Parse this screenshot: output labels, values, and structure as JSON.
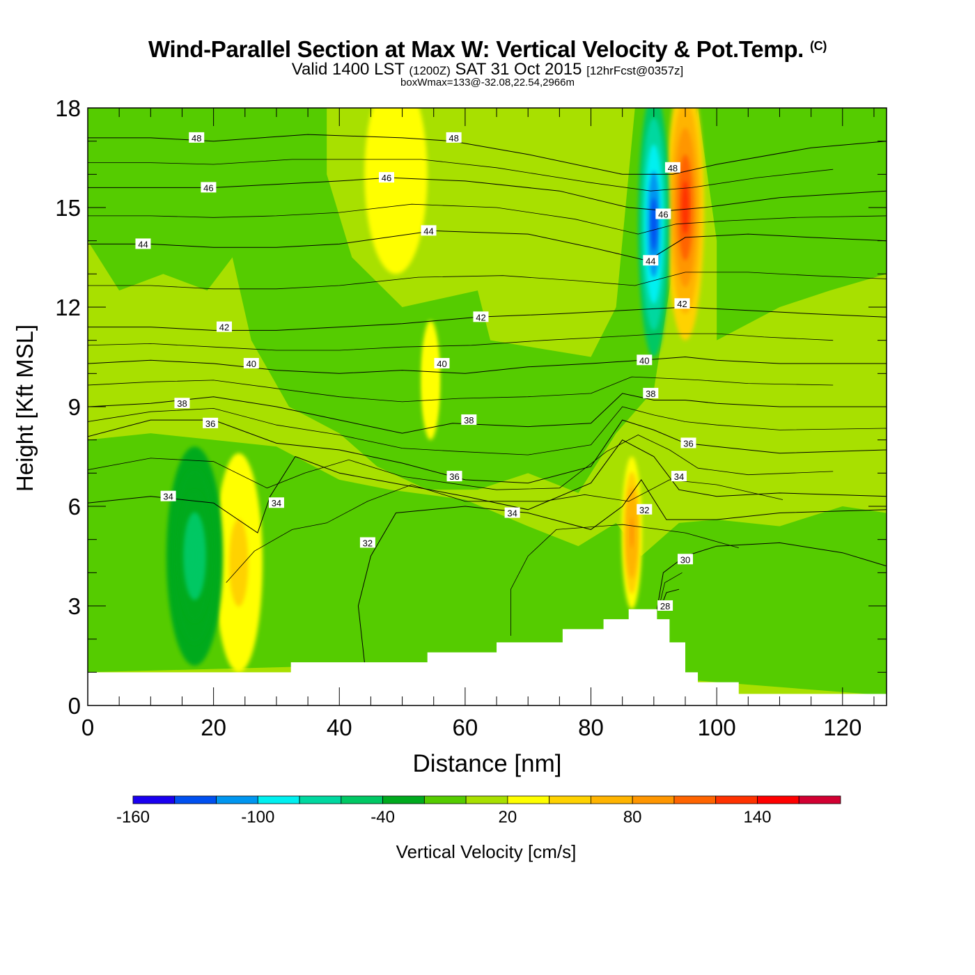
{
  "header": {
    "title": "Wind-Parallel Section at Max W: Vertical Velocity & Pot.Temp.",
    "copyright": "(C)",
    "valid_prefix": "Valid 1400 LST",
    "valid_utc": "(1200Z)",
    "valid_date": "SAT 31 Oct 2015",
    "forecast": "[12hrFcst@0357z]",
    "box_note": "boxWmax=133@-32.08,22.54,2966m"
  },
  "chart_data": {
    "type": "heatmap",
    "title": "Wind-Parallel Section at Max W: Vertical Velocity & Pot.Temp.",
    "xlabel": "Distance [nm]",
    "ylabel": "Height [Kft MSL]",
    "xlim": [
      0,
      127
    ],
    "ylim": [
      0,
      18
    ],
    "x_ticks": [
      0,
      20,
      40,
      60,
      80,
      100,
      120
    ],
    "y_ticks": [
      0,
      3,
      6,
      9,
      12,
      15,
      18
    ],
    "x_tick_labels": [
      "0",
      "20",
      "40",
      "60",
      "80",
      "100",
      "120"
    ],
    "y_tick_labels": [
      "0",
      "3",
      "6",
      "9",
      "12",
      "15",
      "18"
    ],
    "colorbar": {
      "label": "Vertical Velocity [cm/s]",
      "bounds": [
        -160,
        -140,
        -120,
        -100,
        -80,
        -60,
        -40,
        -20,
        0,
        20,
        40,
        60,
        80,
        100,
        120,
        140,
        160,
        180
      ],
      "tick_values": [
        -160,
        -100,
        -40,
        20,
        80,
        140
      ],
      "tick_labels": [
        "-160",
        "-100",
        "-40",
        "20",
        "80",
        "140"
      ],
      "colors": [
        "#1a00f0",
        "#0050f0",
        "#0096f0",
        "#00f0f0",
        "#00d8a0",
        "#00c864",
        "#00aa1e",
        "#55cc00",
        "#a8e000",
        "#ffff00",
        "#ffd200",
        "#ffb400",
        "#ff9600",
        "#ff6400",
        "#ff3200",
        "#ff0000",
        "#d20032"
      ]
    },
    "terrain": [
      [
        0,
        1.0
      ],
      [
        32.3,
        1.0
      ],
      [
        32.3,
        1.3
      ],
      [
        54,
        1.3
      ],
      [
        54,
        1.6
      ],
      [
        65,
        1.6
      ],
      [
        65,
        1.9
      ],
      [
        75.5,
        1.9
      ],
      [
        75.5,
        2.3
      ],
      [
        82,
        2.3
      ],
      [
        82,
        2.6
      ],
      [
        86,
        2.6
      ],
      [
        86,
        2.9
      ],
      [
        90.5,
        2.9
      ],
      [
        90.5,
        2.6
      ],
      [
        92.5,
        2.6
      ],
      [
        92.5,
        1.9
      ],
      [
        95,
        1.9
      ],
      [
        95,
        1.0
      ],
      [
        97,
        1.0
      ],
      [
        97,
        0.7
      ],
      [
        103.5,
        0.7
      ],
      [
        103.5,
        0.35
      ],
      [
        127,
        0.35
      ]
    ],
    "velocity_features": [
      {
        "name": "updraft-left",
        "x": 24,
        "y": 4.3,
        "rx": 3.8,
        "ry": 3.3,
        "value": 60
      },
      {
        "name": "downdraft-left",
        "x": 17,
        "y": 4.5,
        "rx": 4.5,
        "ry": 3.3,
        "value": -60
      },
      {
        "name": "updraft-main",
        "x": 86.5,
        "y": 5.2,
        "rx": 1.6,
        "ry": 2.3,
        "value": 100
      },
      {
        "name": "updraft-upper",
        "x": 95,
        "y": 15,
        "rx": 3,
        "ry": 4,
        "value": 140
      },
      {
        "name": "downdraft-upper",
        "x": 90,
        "y": 14.5,
        "rx": 2.5,
        "ry": 4,
        "value": -140
      },
      {
        "name": "updraft-mid-upper",
        "x": 49,
        "y": 16,
        "rx": 5,
        "ry": 3,
        "value": 30
      },
      {
        "name": "updraft-mid",
        "x": 54.5,
        "y": 9.8,
        "rx": 1.5,
        "ry": 1.8,
        "value": 25
      }
    ],
    "isentropes": [
      {
        "level": 28,
        "points": [
          [
            91,
            2.9
          ],
          [
            92,
            3.4
          ],
          [
            94,
            3.5
          ]
        ],
        "label_at": [
          91.8,
          3.0
        ]
      },
      {
        "level": 30,
        "points": [
          [
            90.5,
            2.9
          ],
          [
            91.5,
            4.0
          ],
          [
            95,
            4.5
          ],
          [
            100,
            4.8
          ],
          [
            110,
            4.9
          ],
          [
            120,
            4.6
          ],
          [
            127,
            4.2
          ]
        ],
        "label_at": [
          95,
          4.4
        ]
      },
      {
        "level": 32,
        "points": [
          [
            44,
            1.3
          ],
          [
            43,
            3.0
          ],
          [
            45,
            4.5
          ],
          [
            49,
            5.8
          ],
          [
            60,
            6.0
          ],
          [
            70,
            5.8
          ],
          [
            80,
            5.3
          ],
          [
            85,
            6.0
          ],
          [
            88,
            6.8
          ],
          [
            92,
            5.6
          ],
          [
            100,
            5.6
          ],
          [
            110,
            5.8
          ],
          [
            127,
            5.9
          ]
        ],
        "label_at": [
          88.5,
          5.9
        ]
      },
      {
        "level": 34,
        "points": [
          [
            0,
            6.1
          ],
          [
            10,
            6.3
          ],
          [
            20,
            6.1
          ],
          [
            27,
            5.2
          ],
          [
            29,
            6.3
          ],
          [
            33,
            7.5
          ],
          [
            40,
            7.0
          ],
          [
            60,
            6.3
          ],
          [
            70,
            5.9
          ],
          [
            80,
            6.7
          ],
          [
            85,
            8.0
          ],
          [
            90,
            7.5
          ],
          [
            94,
            6.5
          ],
          [
            100,
            6.3
          ],
          [
            110,
            6.4
          ],
          [
            127,
            6.3
          ]
        ],
        "label_at": [
          94,
          6.9
        ]
      },
      {
        "level": 36,
        "points": [
          [
            0,
            8.1
          ],
          [
            10,
            8.6
          ],
          [
            20,
            8.6
          ],
          [
            30,
            7.9
          ],
          [
            40,
            7.7
          ],
          [
            50,
            7.3
          ],
          [
            60,
            6.8
          ],
          [
            70,
            6.7
          ],
          [
            80,
            7.2
          ],
          [
            85,
            8.6
          ],
          [
            90,
            8.3
          ],
          [
            95,
            7.9
          ],
          [
            100,
            7.8
          ],
          [
            110,
            7.6
          ],
          [
            127,
            7.7
          ]
        ],
        "label_at": [
          95.5,
          7.9
        ]
      },
      {
        "level": 38,
        "points": [
          [
            0,
            9.0
          ],
          [
            10,
            9.1
          ],
          [
            20,
            9.3
          ],
          [
            30,
            9.0
          ],
          [
            40,
            8.6
          ],
          [
            50,
            8.2
          ],
          [
            58,
            8.5
          ],
          [
            70,
            8.4
          ],
          [
            80,
            8.5
          ],
          [
            85,
            9.4
          ],
          [
            90,
            9.2
          ],
          [
            95,
            9.2
          ],
          [
            100,
            9.1
          ],
          [
            110,
            9.0
          ],
          [
            127,
            9.0
          ]
        ],
        "label_at": [
          89.5,
          9.4
        ]
      },
      {
        "level": 40,
        "points": [
          [
            0,
            10.3
          ],
          [
            10,
            10.4
          ],
          [
            20,
            10.3
          ],
          [
            30,
            10.1
          ],
          [
            40,
            10.0
          ],
          [
            50,
            10.1
          ],
          [
            60,
            10.0
          ],
          [
            70,
            10.2
          ],
          [
            80,
            10.3
          ],
          [
            88,
            10.4
          ],
          [
            95,
            10.5
          ],
          [
            100,
            10.4
          ],
          [
            110,
            10.3
          ],
          [
            127,
            10.3
          ]
        ],
        "label_at": [
          88.5,
          10.4
        ]
      },
      {
        "level": 42,
        "points": [
          [
            0,
            11.4
          ],
          [
            10,
            11.4
          ],
          [
            20,
            11.3
          ],
          [
            30,
            11.3
          ],
          [
            40,
            11.4
          ],
          [
            50,
            11.5
          ],
          [
            62,
            11.7
          ],
          [
            75,
            11.8
          ],
          [
            85,
            11.9
          ],
          [
            95,
            12.0
          ],
          [
            105,
            11.9
          ],
          [
            115,
            11.8
          ],
          [
            127,
            11.7
          ]
        ],
        "label_at": [
          94.5,
          12.1
        ]
      },
      {
        "level": 44,
        "points": [
          [
            0,
            13.9
          ],
          [
            10,
            13.9
          ],
          [
            20,
            13.8
          ],
          [
            30,
            13.8
          ],
          [
            40,
            13.9
          ],
          [
            55,
            14.3
          ],
          [
            70,
            14.2
          ],
          [
            80,
            13.8
          ],
          [
            89,
            13.4
          ],
          [
            95,
            14.1
          ],
          [
            105,
            14.2
          ],
          [
            115,
            14.1
          ],
          [
            127,
            14.0
          ]
        ],
        "label_at": [
          89.5,
          13.4
        ]
      },
      {
        "level": 46,
        "points": [
          [
            0,
            15.6
          ],
          [
            10,
            15.6
          ],
          [
            20,
            15.6
          ],
          [
            30,
            15.7
          ],
          [
            40,
            15.8
          ],
          [
            48,
            15.9
          ],
          [
            60,
            15.8
          ],
          [
            75,
            15.5
          ],
          [
            86,
            15.0
          ],
          [
            92,
            14.9
          ],
          [
            98,
            15.0
          ],
          [
            110,
            15.3
          ],
          [
            127,
            15.5
          ]
        ],
        "label_at": [
          91.5,
          14.8
        ]
      },
      {
        "level": 48,
        "points": [
          [
            0,
            17.1
          ],
          [
            10,
            17.1
          ],
          [
            20,
            17.0
          ],
          [
            35,
            17.2
          ],
          [
            50,
            17.1
          ],
          [
            58,
            17.0
          ],
          [
            70,
            16.6
          ],
          [
            85,
            16.0
          ],
          [
            93,
            16.0
          ],
          [
            100,
            16.3
          ],
          [
            115,
            16.8
          ],
          [
            127,
            17.0
          ]
        ],
        "label_at": [
          93,
          16.2
        ]
      }
    ],
    "extra_labels": [
      {
        "text": "48",
        "x": 17.3,
        "y": 17.1
      },
      {
        "text": "48",
        "x": 58.2,
        "y": 17.1
      },
      {
        "text": "46",
        "x": 19.2,
        "y": 15.6
      },
      {
        "text": "46",
        "x": 47.5,
        "y": 15.9
      },
      {
        "text": "44",
        "x": 8.8,
        "y": 13.9
      },
      {
        "text": "44",
        "x": 54.2,
        "y": 14.3
      },
      {
        "text": "42",
        "x": 21.7,
        "y": 11.4
      },
      {
        "text": "42",
        "x": 62.5,
        "y": 11.7
      },
      {
        "text": "40",
        "x": 26.0,
        "y": 10.3
      },
      {
        "text": "40",
        "x": 56.3,
        "y": 10.3
      },
      {
        "text": "38",
        "x": 15.0,
        "y": 9.1
      },
      {
        "text": "38",
        "x": 60.6,
        "y": 8.6
      },
      {
        "text": "36",
        "x": 19.5,
        "y": 8.5
      },
      {
        "text": "36",
        "x": 58.3,
        "y": 6.9
      },
      {
        "text": "34",
        "x": 12.8,
        "y": 6.3
      },
      {
        "text": "34",
        "x": 30.0,
        "y": 6.1
      },
      {
        "text": "34",
        "x": 67.5,
        "y": 5.8
      },
      {
        "text": "32",
        "x": 44.5,
        "y": 4.9
      }
    ]
  }
}
